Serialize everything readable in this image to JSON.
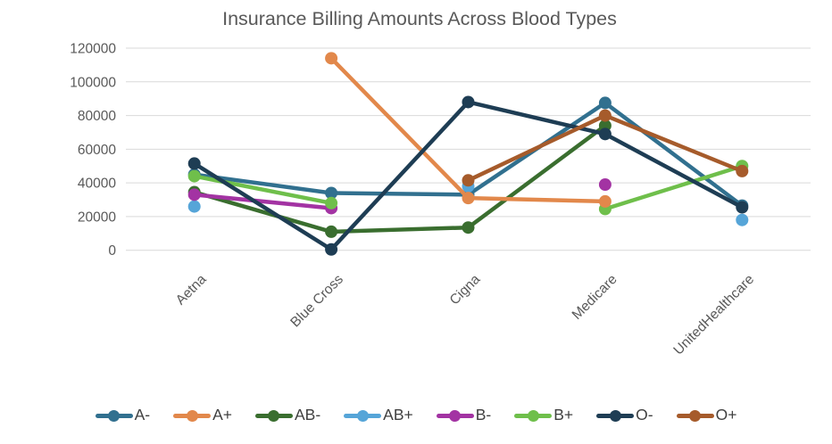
{
  "chart_data": {
    "type": "line",
    "title": "Insurance Billing Amounts Across Blood Types",
    "xlabel": "",
    "ylabel": "",
    "categories": [
      "Aetna",
      "Blue Cross",
      "Cigna",
      "Medicare",
      "UnitedHealthcare"
    ],
    "series": [
      {
        "name": "A-",
        "color": "#31708f",
        "values": [
          45000,
          34000,
          33000,
          87500,
          26500
        ],
        "z": 1
      },
      {
        "name": "A+",
        "color": "#e2884b",
        "values": [
          null,
          114000,
          31000,
          29000,
          null
        ],
        "z": 6
      },
      {
        "name": "AB-",
        "color": "#3a6e2f",
        "values": [
          34500,
          11000,
          13500,
          74000,
          null
        ],
        "z": 3
      },
      {
        "name": "AB+",
        "color": "#56a5d8",
        "values": [
          26000,
          null,
          38000,
          null,
          18000
        ],
        "z": 2
      },
      {
        "name": "B-",
        "color": "#a333a3",
        "values": [
          33000,
          25000,
          null,
          39000,
          null
        ],
        "z": 4
      },
      {
        "name": "B+",
        "color": "#6fbf4b",
        "values": [
          44000,
          28000,
          null,
          24500,
          50000
        ],
        "z": 5
      },
      {
        "name": "O-",
        "color": "#1e3d54",
        "values": [
          51500,
          500,
          88000,
          69000,
          25500
        ],
        "z": 7
      },
      {
        "name": "O+",
        "color": "#a65b2b",
        "values": [
          null,
          null,
          41500,
          80000,
          47000
        ],
        "z": 8
      }
    ],
    "yticks": [
      0,
      20000,
      40000,
      60000,
      80000,
      100000,
      120000
    ],
    "ylim": [
      0,
      120000
    ],
    "grid": true,
    "legend_position": "bottom",
    "colors": {
      "title_text": "#595959",
      "axis_text": "#595959",
      "gridline": "#d9d9d9",
      "background": "#ffffff"
    }
  }
}
